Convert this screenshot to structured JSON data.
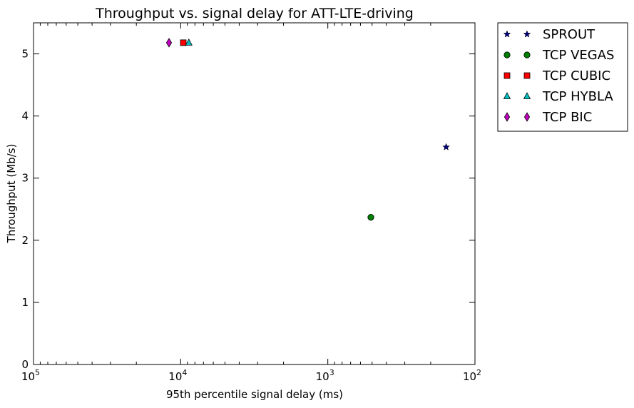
{
  "chart_data": {
    "type": "scatter",
    "title": "Throughput vs. signal delay for ATT-LTE-driving",
    "xlabel": "95th percentile signal delay (ms)",
    "ylabel": "Throughput (Mb/s)",
    "x_scale": "log",
    "x_inverted": true,
    "xlim": [
      100000,
      100
    ],
    "ylim": [
      0,
      5.5
    ],
    "x_ticks": [
      {
        "value": 100000,
        "base": "10",
        "exp": "5"
      },
      {
        "value": 10000,
        "base": "10",
        "exp": "4"
      },
      {
        "value": 1000,
        "base": "10",
        "exp": "3"
      },
      {
        "value": 100,
        "base": "10",
        "exp": "2"
      }
    ],
    "y_ticks": [
      0,
      1,
      2,
      3,
      4,
      5
    ],
    "grid": false,
    "legend_position": "outside-top-right",
    "series": [
      {
        "name": "SPROUT",
        "marker": "star",
        "color": "#000080",
        "points": [
          {
            "x": 157,
            "y": 3.5
          }
        ]
      },
      {
        "name": "TCP VEGAS",
        "marker": "circle",
        "color": "#008000",
        "points": [
          {
            "x": 510,
            "y": 2.37
          }
        ]
      },
      {
        "name": "TCP CUBIC",
        "marker": "square",
        "color": "#ff0000",
        "points": [
          {
            "x": 9600,
            "y": 5.18
          }
        ]
      },
      {
        "name": "TCP HYBLA",
        "marker": "triangle",
        "color": "#00bfbf",
        "points": [
          {
            "x": 8800,
            "y": 5.18
          }
        ]
      },
      {
        "name": "TCP BIC",
        "marker": "diamond",
        "color": "#bf00bf",
        "points": [
          {
            "x": 12000,
            "y": 5.18
          }
        ]
      }
    ]
  }
}
